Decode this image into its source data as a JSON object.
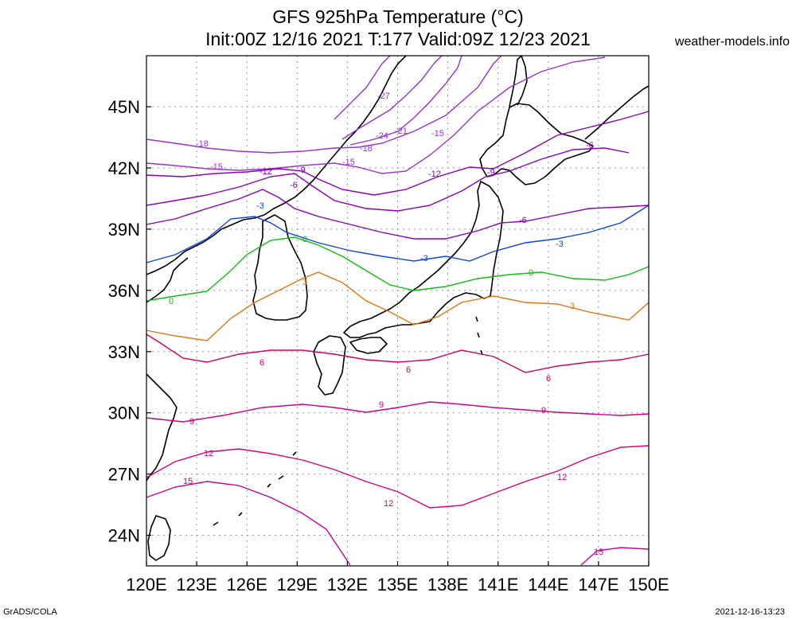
{
  "title_line1": "GFS 925hPa Temperature (°C)",
  "title_line2": "Init:00Z 12/16 2021 T:177 Valid:09Z 12/23 2021",
  "site": "weather-models.info",
  "footer_left": "GrADS/COLA",
  "footer_right": "2021-12-16-13:23",
  "map": {
    "lon_ticks": [
      "120E",
      "123E",
      "126E",
      "129E",
      "132E",
      "135E",
      "138E",
      "141E",
      "144E",
      "147E",
      "150E"
    ],
    "lat_ticks": [
      "45N",
      "42N",
      "39N",
      "36N",
      "33N",
      "30N",
      "27N",
      "24N"
    ],
    "lon_range": [
      120,
      150
    ],
    "lat_range": [
      22.5,
      47.5
    ],
    "grid": true
  },
  "contours": [
    {
      "value": "-27",
      "color": "#9933cc"
    },
    {
      "value": "-24",
      "color": "#9933cc"
    },
    {
      "value": "-21",
      "color": "#9933cc"
    },
    {
      "value": "-18",
      "color": "#9933cc"
    },
    {
      "value": "-15",
      "color": "#9933cc"
    },
    {
      "value": "-12",
      "color": "#8800bb"
    },
    {
      "value": "-9",
      "color": "#8800bb"
    },
    {
      "value": "-6",
      "color": "#8800bb"
    },
    {
      "value": "-3",
      "color": "#1144dd"
    },
    {
      "value": "0",
      "color": "#11bb11"
    },
    {
      "value": "3",
      "color": "#dd7711"
    },
    {
      "value": "6",
      "color": "#cc0066"
    },
    {
      "value": "9",
      "color": "#cc0088"
    },
    {
      "value": "12",
      "color": "#dd0077"
    },
    {
      "value": "15",
      "color": "#cc0099"
    }
  ]
}
